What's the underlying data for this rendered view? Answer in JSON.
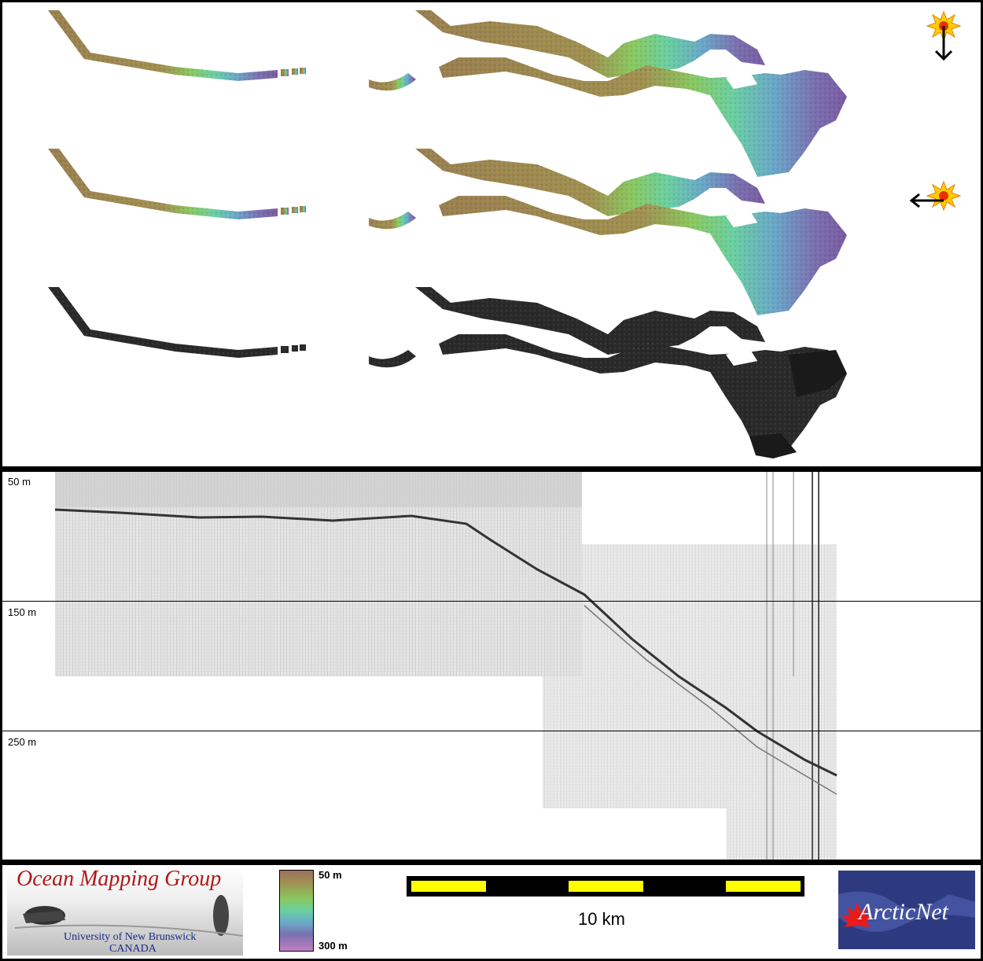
{
  "profile": {
    "depth_labels": [
      "50 m",
      "150 m",
      "250 m"
    ]
  },
  "legend": {
    "group_name": "Ocean Mapping Group",
    "university": "University of New Brunswick",
    "country": "CANADA",
    "colorbar_top": "50 m",
    "colorbar_bottom": "300 m",
    "scale_label": "10 km",
    "partner_logo": "ArcticNet"
  },
  "icons": {
    "sun_top": "sun-illumination-south-icon",
    "sun_mid": "sun-illumination-west-icon"
  },
  "colors": {
    "shallow": "#9a8050",
    "mid": "#7ad07a",
    "deep": "#7a5aa0",
    "scale_yellow": "#ffff00"
  }
}
